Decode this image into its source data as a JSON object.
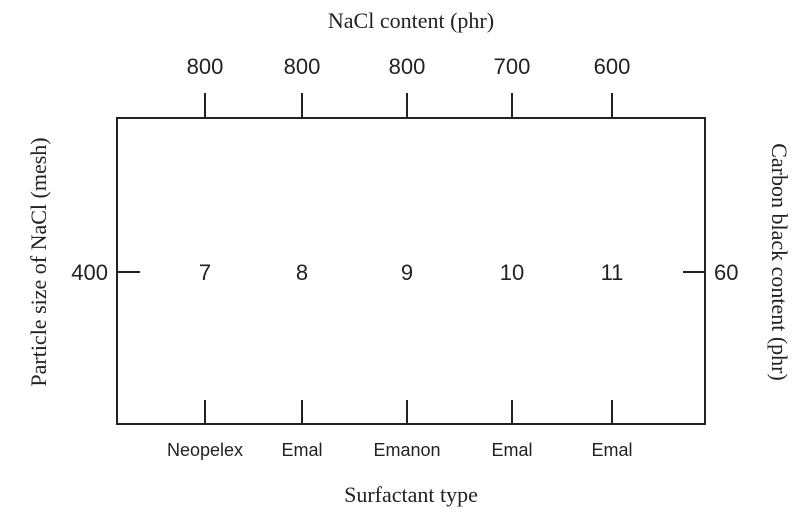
{
  "top_axis": {
    "title": "NaCl content (phr)"
  },
  "left_axis": {
    "title": "Particle size of NaCl (mesh)",
    "value": 400
  },
  "right_axis": {
    "title": "Carbon black content (phr)",
    "value": 60
  },
  "bottom_axis": {
    "title": "Surfactant type"
  },
  "columns": [
    {
      "nacl": 800,
      "run": 7,
      "surfactant": "Neopelex"
    },
    {
      "nacl": 800,
      "run": 8,
      "surfactant": "Emal"
    },
    {
      "nacl": 800,
      "run": 9,
      "surfactant": "Emanon"
    },
    {
      "nacl": 700,
      "run": 10,
      "surfactant": "Emal"
    },
    {
      "nacl": 600,
      "run": 11,
      "surfactant": "Emal"
    }
  ]
}
